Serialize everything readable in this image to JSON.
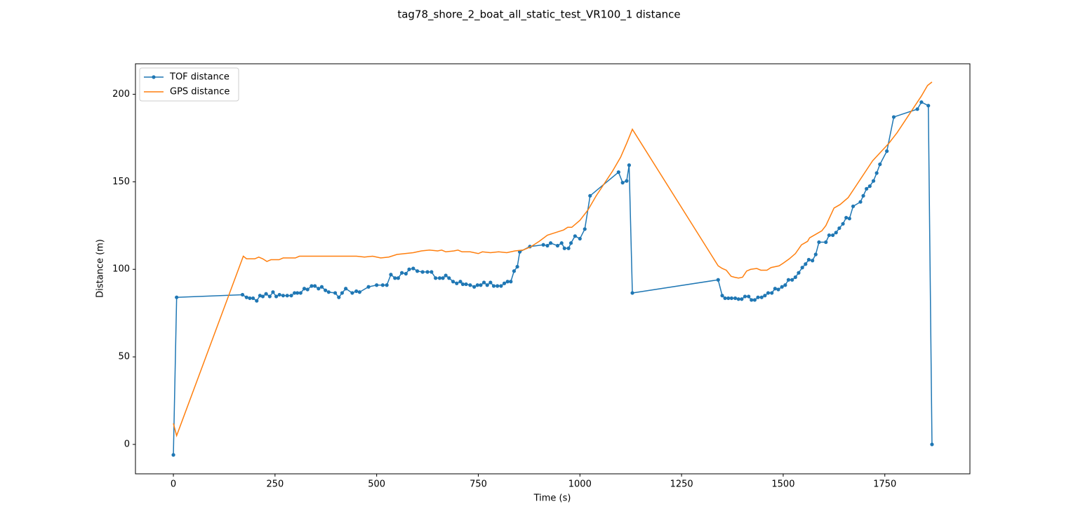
{
  "chart_data": {
    "type": "line",
    "title": "tag78_shore_2_boat_all_static_test_VR100_1 distance",
    "x_label": "Time (s)",
    "y_label": "Distance (m)",
    "xlim": [
      -93.3,
      1959.3
    ],
    "ylim": [
      -16.8,
      217.4
    ],
    "xticks": [
      0,
      250,
      500,
      750,
      1000,
      1250,
      1500,
      1750
    ],
    "yticks": [
      0,
      50,
      100,
      150,
      200
    ],
    "grid": false,
    "legend": "upper left",
    "series": [
      {
        "name": "TOF distance",
        "color": "#1f77b4",
        "marker": true,
        "x": [
          0,
          8,
          170,
          180,
          188,
          196,
          205,
          213,
          220,
          228,
          237,
          245,
          253,
          261,
          270,
          280,
          290,
          298,
          305,
          313,
          322,
          330,
          340,
          348,
          357,
          365,
          374,
          382,
          398,
          407,
          415,
          424,
          440,
          450,
          458,
          480,
          500,
          515,
          525,
          535,
          545,
          553,
          562,
          572,
          580,
          590,
          600,
          613,
          625,
          635,
          645,
          655,
          663,
          670,
          678,
          688,
          697,
          706,
          712,
          720,
          730,
          740,
          748,
          756,
          764,
          772,
          780,
          788,
          797,
          806,
          814,
          822,
          830,
          838,
          846,
          852,
          877,
          910,
          920,
          928,
          945,
          955,
          962,
          972,
          978,
          988,
          1000,
          1012,
          1025,
          1095,
          1105,
          1115,
          1121,
          1129,
          1340,
          1350,
          1357,
          1365,
          1373,
          1382,
          1390,
          1398,
          1406,
          1415,
          1422,
          1430,
          1438,
          1447,
          1455,
          1463,
          1472,
          1480,
          1488,
          1497,
          1505,
          1513,
          1522,
          1530,
          1538,
          1547,
          1555,
          1563,
          1572,
          1580,
          1588,
          1605,
          1613,
          1622,
          1630,
          1638,
          1647,
          1655,
          1663,
          1672,
          1690,
          1697,
          1705,
          1713,
          1722,
          1730,
          1738,
          1755,
          1772,
          1830,
          1840,
          1857,
          1866
        ],
        "values": [
          -6,
          84,
          85.5,
          84,
          83.5,
          83.5,
          82,
          85,
          84.5,
          86,
          84.5,
          87,
          84.5,
          85.5,
          85,
          85,
          85,
          86.5,
          86.5,
          86.5,
          89,
          88.5,
          90.5,
          90.5,
          89,
          90,
          88,
          87,
          86.5,
          84,
          86.5,
          89,
          86.5,
          87.5,
          87,
          90,
          91,
          91,
          91,
          97,
          95,
          95,
          98,
          97.5,
          100,
          100.5,
          99,
          98.5,
          98.5,
          98.5,
          95,
          95,
          95,
          96.5,
          95,
          93,
          92,
          93,
          91.5,
          91.5,
          91,
          90,
          91,
          91,
          92.5,
          91,
          92.5,
          90.5,
          90.5,
          90.5,
          92,
          93,
          93,
          99,
          101.5,
          110,
          113,
          114,
          113.5,
          115,
          113.5,
          115,
          112,
          112,
          115,
          119,
          117.5,
          123,
          142,
          155.5,
          149.5,
          150.5,
          159.5,
          86.5,
          94,
          85,
          83.5,
          83.5,
          83.5,
          83.5,
          83,
          83,
          84.5,
          84.5,
          82.5,
          82.5,
          84,
          84,
          85,
          86.5,
          86.5,
          89,
          88.5,
          90,
          91,
          94,
          94,
          95.5,
          98,
          101,
          103,
          105.5,
          105,
          108.5,
          115.5,
          115.5,
          119.5,
          119.5,
          121,
          123.5,
          126,
          129.5,
          129,
          136,
          138.5,
          142,
          146,
          147.5,
          150.5,
          155,
          160,
          167.5,
          187,
          191.5,
          195.5,
          193.5,
          0
        ]
      },
      {
        "name": "GPS distance",
        "color": "#ff7f0e",
        "marker": false,
        "x": [
          0,
          8,
          172,
          180,
          200,
          210,
          220,
          230,
          240,
          260,
          270,
          300,
          310,
          450,
          470,
          490,
          510,
          530,
          550,
          570,
          590,
          610,
          630,
          650,
          660,
          670,
          690,
          700,
          710,
          730,
          750,
          760,
          780,
          800,
          820,
          840,
          860,
          880,
          900,
          920,
          940,
          960,
          970,
          980,
          1000,
          1020,
          1040,
          1060,
          1080,
          1100,
          1115,
          1129,
          1340,
          1350,
          1360,
          1372,
          1380,
          1390,
          1400,
          1410,
          1420,
          1435,
          1445,
          1460,
          1470,
          1490,
          1500,
          1515,
          1530,
          1545,
          1560,
          1565,
          1580,
          1595,
          1605,
          1615,
          1625,
          1640,
          1660,
          1680,
          1700,
          1720,
          1740,
          1760,
          1780,
          1800,
          1820,
          1840,
          1855,
          1866
        ],
        "values": [
          12,
          5,
          107.5,
          106,
          106,
          107,
          106,
          104.5,
          105.5,
          105.5,
          106.5,
          106.5,
          107.5,
          107.5,
          107,
          107.5,
          106.5,
          107,
          108.5,
          109,
          109.5,
          110.5,
          111,
          110.5,
          111,
          110,
          110.5,
          111,
          110,
          110,
          109,
          110,
          109.5,
          110,
          109.5,
          110.5,
          111,
          113,
          116,
          119.5,
          121,
          122.5,
          124,
          124,
          128,
          134,
          142,
          149,
          156,
          164,
          172,
          180,
          102,
          100.5,
          99.5,
          96,
          95.5,
          95,
          95.5,
          99,
          100,
          100.5,
          99.5,
          99.5,
          101,
          102,
          103.5,
          106,
          109,
          114,
          116,
          118,
          120,
          122,
          125,
          130,
          135,
          137,
          141,
          148,
          155,
          162,
          167,
          172,
          178,
          185,
          192,
          199,
          205,
          207
        ]
      }
    ]
  }
}
